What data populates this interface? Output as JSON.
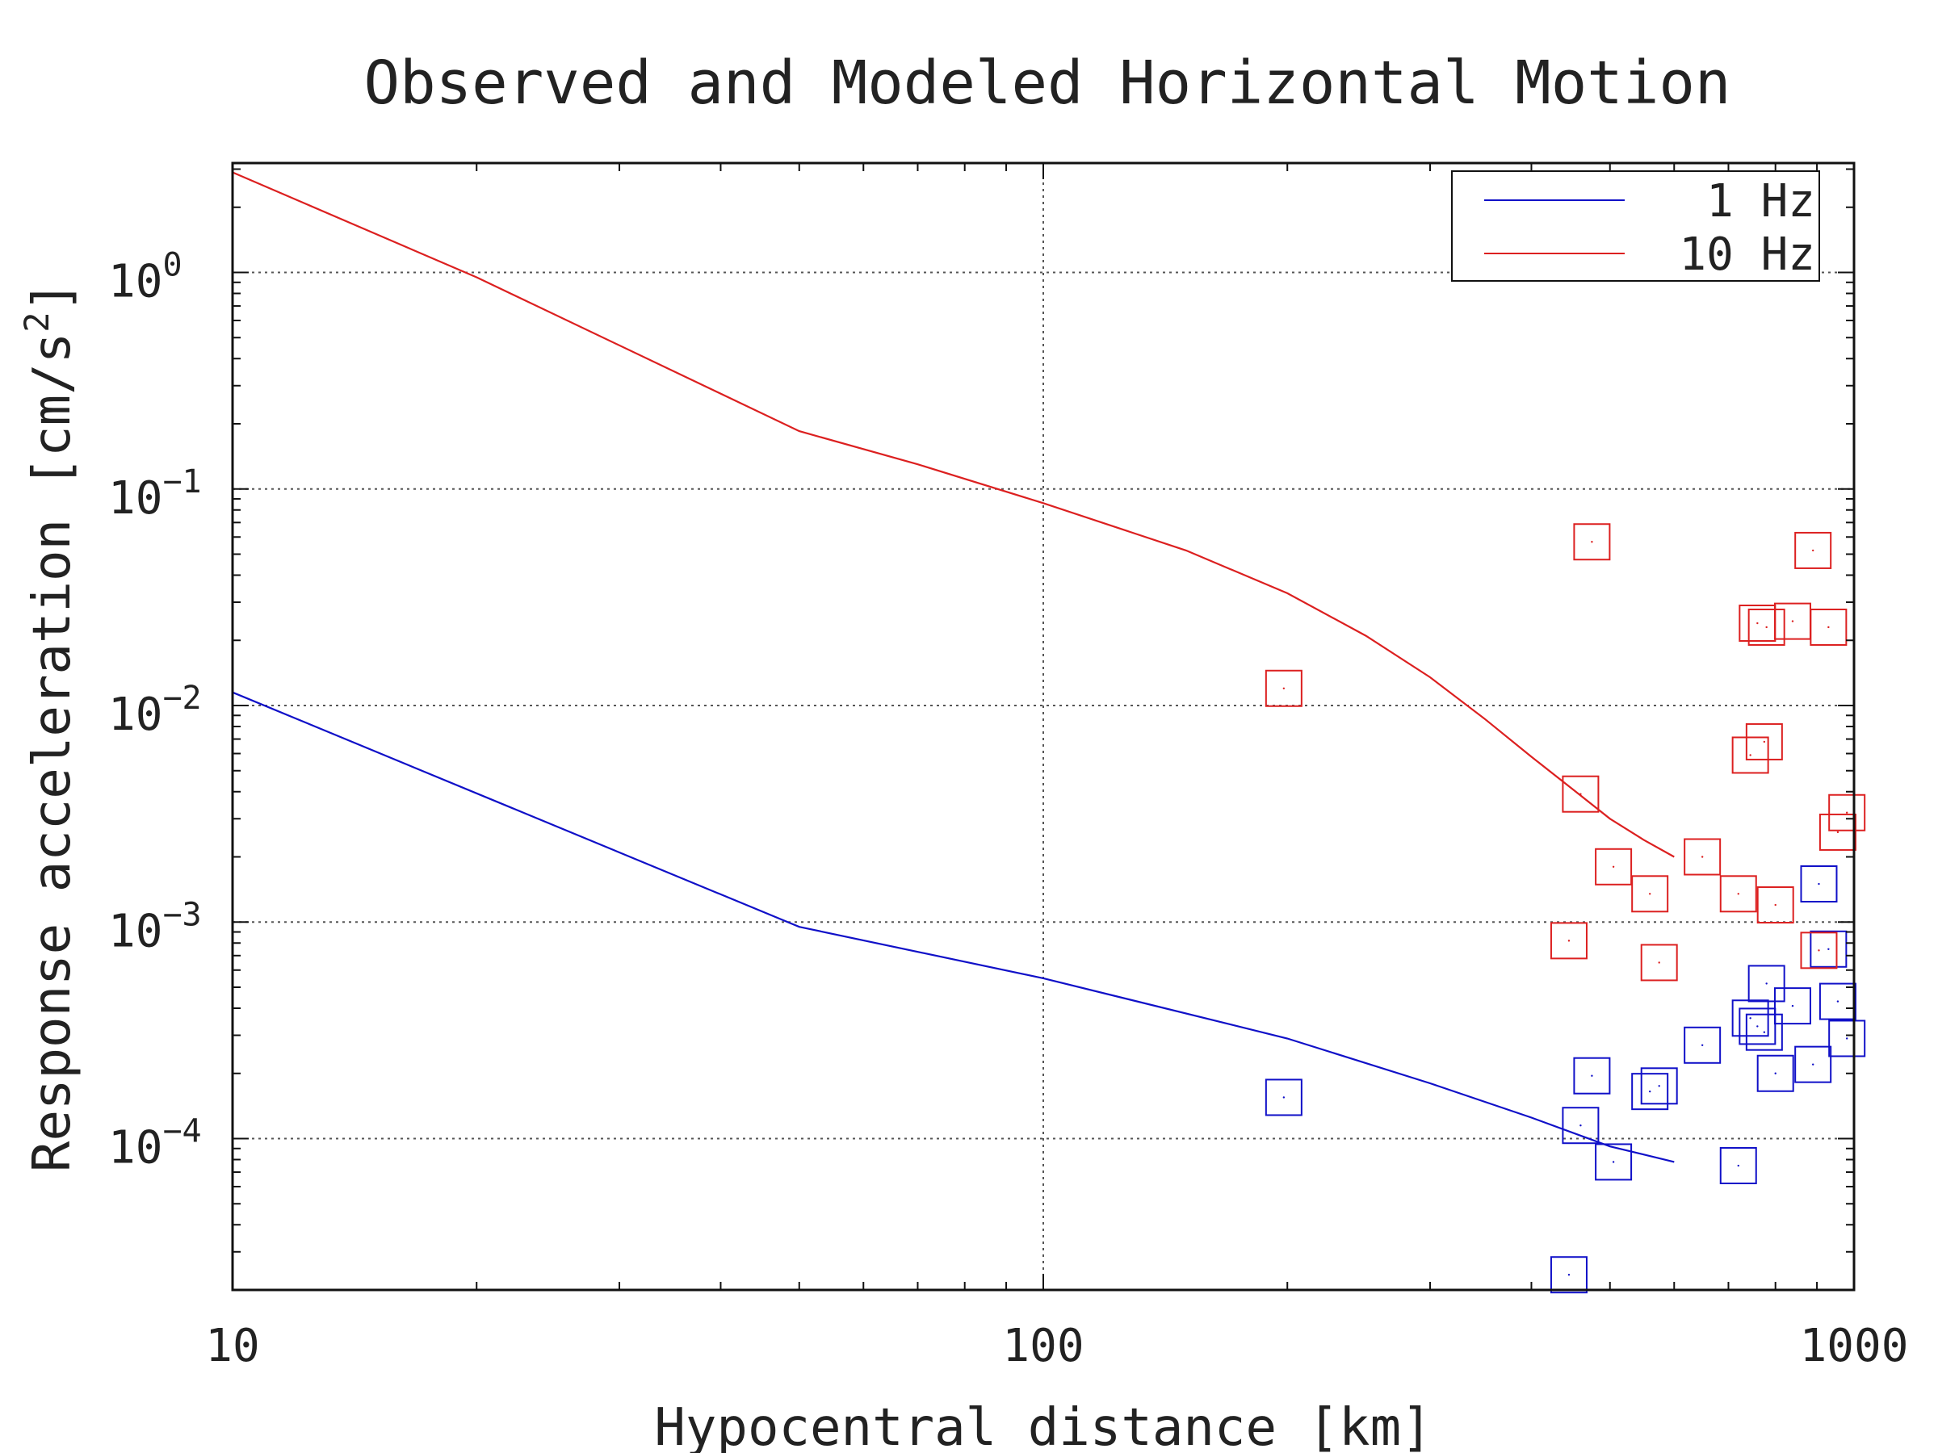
{
  "chart_data": {
    "type": "scatter",
    "title": "Observed and Modeled Horizontal Motion",
    "xlabel": "Hypocentral distance [km]",
    "ylabel_text": "Response acceleration [cm/s",
    "ylabel_exponent": "2",
    "ylabel_suffix": "]",
    "x_scale": "log",
    "y_scale": "log",
    "xlim": [
      10,
      1000
    ],
    "ylim": [
      2e-05,
      3.2
    ],
    "grid": true,
    "legend_position": "top-right",
    "x_ticks": [
      {
        "value": 10,
        "label": "10"
      },
      {
        "value": 100,
        "label": "100"
      },
      {
        "value": 1000,
        "label": "1000"
      }
    ],
    "y_ticks": [
      {
        "value": 1,
        "base": "10",
        "exp": "0"
      },
      {
        "value": 0.1,
        "base": "10",
        "exp": "−1"
      },
      {
        "value": 0.01,
        "base": "10",
        "exp": "−2"
      },
      {
        "value": 0.001,
        "base": "10",
        "exp": "−3"
      },
      {
        "value": 0.0001,
        "base": "10",
        "exp": "−4"
      }
    ],
    "series": [
      {
        "name": "1 Hz",
        "color": "#1010c8",
        "model_line": {
          "x": [
            10,
            50,
            100,
            200,
            300,
            400,
            500,
            600
          ],
          "y": [
            0.0115,
            0.00095,
            0.00055,
            0.00029,
            0.00018,
            0.000125,
            9.2e-05,
            7.8e-05
          ]
        },
        "observed": {
          "x": [
            198,
            445,
            460,
            475,
            505,
            560,
            575,
            650,
            720,
            745,
            760,
            775,
            780,
            800,
            840,
            890,
            905,
            930,
            955,
            980
          ],
          "y": [
            0.000155,
            2.35e-05,
            0.000115,
            0.000195,
            7.8e-05,
            0.000165,
            0.000175,
            0.00027,
            7.5e-05,
            0.00036,
            0.00033,
            0.00031,
            0.00052,
            0.0002,
            0.00041,
            0.00022,
            0.0015,
            0.00075,
            0.00043,
            0.00029
          ]
        }
      },
      {
        "name": "10 Hz",
        "color": "#dc2020",
        "model_line": {
          "x": [
            10,
            20,
            50,
            70,
            100,
            150,
            200,
            250,
            300,
            350,
            400,
            450,
            500,
            550,
            600
          ],
          "y": [
            2.9,
            0.95,
            0.185,
            0.13,
            0.086,
            0.052,
            0.033,
            0.021,
            0.0135,
            0.0087,
            0.0058,
            0.0041,
            0.003,
            0.0024,
            0.002
          ]
        },
        "observed": {
          "x": [
            198,
            445,
            460,
            475,
            505,
            560,
            575,
            650,
            720,
            745,
            760,
            775,
            780,
            800,
            840,
            890,
            905,
            930,
            955,
            980
          ],
          "y": [
            0.012,
            0.00082,
            0.0039,
            0.057,
            0.0018,
            0.00135,
            0.00065,
            0.002,
            0.00135,
            0.0059,
            0.024,
            0.0068,
            0.023,
            0.0012,
            0.0245,
            0.052,
            0.00074,
            0.023,
            0.0026,
            0.0032
          ]
        }
      }
    ]
  }
}
